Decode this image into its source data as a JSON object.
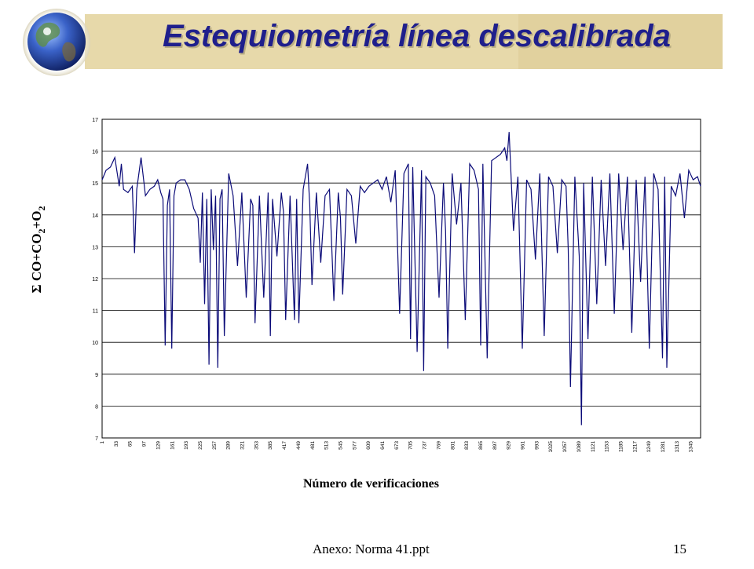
{
  "slide": {
    "title": "Estequiometría línea descalibrada",
    "footer_left": "Anexo: Norma 41.ppt",
    "footer_right": "15"
  },
  "colors": {
    "series": "#0b0b78",
    "banner": "#e7d9aa",
    "title": "#1f1f8c"
  },
  "icons": {
    "logo": "globe-icon"
  },
  "chart_data": {
    "type": "line",
    "title": "",
    "xlabel": "Número de verificaciones",
    "ylabel_parts": [
      "Σ CO+CO",
      "2",
      "+O",
      "2"
    ],
    "ylim": [
      7,
      17
    ],
    "yticks": [
      7,
      8,
      9,
      10,
      11,
      12,
      13,
      14,
      15,
      16,
      17
    ],
    "xrange": [
      1,
      1367
    ],
    "xticks": [
      1,
      33,
      65,
      97,
      129,
      161,
      193,
      225,
      257,
      289,
      321,
      353,
      385,
      417,
      449,
      481,
      513,
      545,
      577,
      609,
      641,
      673,
      705,
      737,
      769,
      801,
      833,
      865,
      897,
      929,
      961,
      993,
      1025,
      1057,
      1089,
      1121,
      1153,
      1185,
      1217,
      1249,
      1281,
      1313,
      1345
    ],
    "grid": true,
    "series": [
      {
        "x": [
          1,
          10,
          20,
          30,
          40,
          45,
          50,
          60,
          70,
          75,
          80,
          90,
          100,
          110,
          120,
          128,
          135,
          140,
          145,
          150,
          155,
          160,
          165,
          170,
          180,
          190,
          200,
          210,
          220,
          225,
          230,
          235,
          240,
          245,
          250,
          255,
          260,
          265,
          270,
          275,
          280,
          290,
          300,
          310,
          320,
          330,
          340,
          345,
          350,
          360,
          370,
          380,
          385,
          390,
          400,
          410,
          415,
          420,
          430,
          440,
          445,
          450,
          460,
          470,
          475,
          480,
          490,
          500,
          510,
          520,
          530,
          540,
          545,
          550,
          560,
          570,
          580,
          590,
          600,
          610,
          620,
          630,
          640,
          650,
          660,
          670,
          680,
          690,
          700,
          705,
          710,
          720,
          730,
          735,
          740,
          750,
          760,
          770,
          780,
          785,
          790,
          800,
          810,
          820,
          830,
          840,
          850,
          860,
          865,
          870,
          880,
          890,
          900,
          910,
          920,
          925,
          930,
          940,
          950,
          960,
          970,
          980,
          990,
          1000,
          1010,
          1020,
          1030,
          1040,
          1050,
          1060,
          1065,
          1070,
          1080,
          1090,
          1095,
          1100,
          1110,
          1120,
          1130,
          1140,
          1150,
          1160,
          1170,
          1180,
          1190,
          1200,
          1210,
          1220,
          1230,
          1240,
          1250,
          1260,
          1270,
          1280,
          1285,
          1290,
          1300,
          1310,
          1320,
          1330,
          1340,
          1350,
          1360,
          1367
        ],
        "values": [
          15.1,
          15.4,
          15.5,
          15.8,
          14.9,
          15.6,
          14.8,
          14.7,
          14.9,
          12.8,
          14.8,
          15.8,
          14.6,
          14.8,
          14.9,
          15.1,
          14.7,
          14.5,
          9.9,
          14.3,
          14.8,
          9.8,
          14.6,
          15.0,
          15.1,
          15.1,
          14.8,
          14.2,
          13.9,
          12.5,
          14.7,
          11.2,
          14.5,
          9.3,
          14.8,
          12.9,
          14.6,
          9.2,
          14.5,
          14.8,
          10.2,
          15.3,
          14.6,
          12.4,
          14.7,
          11.4,
          14.5,
          14.3,
          10.6,
          14.6,
          11.4,
          14.7,
          10.2,
          14.5,
          12.7,
          14.7,
          14.1,
          10.7,
          14.6,
          10.7,
          14.5,
          10.6,
          14.8,
          15.6,
          14.3,
          11.8,
          14.7,
          12.5,
          14.6,
          14.8,
          11.3,
          14.7,
          13.9,
          11.5,
          14.8,
          14.6,
          13.1,
          14.9,
          14.7,
          14.9,
          15.0,
          15.1,
          14.8,
          15.2,
          14.4,
          15.4,
          10.9,
          15.3,
          15.6,
          10.1,
          15.5,
          9.7,
          15.4,
          9.1,
          15.2,
          15.0,
          14.6,
          11.4,
          15.0,
          13.5,
          9.8,
          15.3,
          13.7,
          15.0,
          10.7,
          15.6,
          15.4,
          14.8,
          9.9,
          15.6,
          9.5,
          15.7,
          15.8,
          15.9,
          16.1,
          15.7,
          16.6,
          13.5,
          15.2,
          9.8,
          15.1,
          14.8,
          12.6,
          15.3,
          10.2,
          15.2,
          14.9,
          12.8,
          15.1,
          14.9,
          12.9,
          8.6,
          15.2,
          12.7,
          7.4,
          15.0,
          10.1,
          15.2,
          11.2,
          15.1,
          12.4,
          15.3,
          10.9,
          15.3,
          12.9,
          15.2,
          10.3,
          15.1,
          11.9,
          15.2,
          9.8,
          15.3,
          14.8,
          9.5,
          15.2,
          9.2,
          14.9,
          14.6,
          15.3,
          13.9,
          15.4,
          15.1,
          15.2,
          14.9
        ]
      }
    ]
  }
}
